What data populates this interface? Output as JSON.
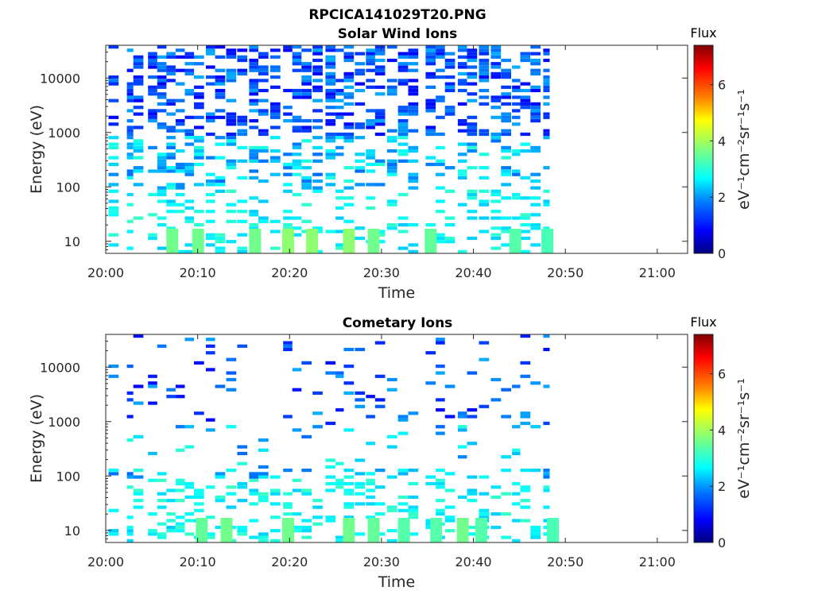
{
  "figure": {
    "filename": "RPCICA141029T20.PNG"
  },
  "colors": {
    "background": "#ffffff",
    "axis": "#262626",
    "colormap": [
      "#00007f",
      "#0000ff",
      "#007fff",
      "#00ffff",
      "#7fff7f",
      "#ffff00",
      "#ff7f00",
      "#ff0000",
      "#7f0000"
    ]
  },
  "chart_data": [
    {
      "type": "heatmap",
      "title": "Solar Wind Ions",
      "xlabel": "Time",
      "ylabel": "Energy (eV)",
      "xticks": [
        "20:00",
        "20:10",
        "20:20",
        "20:30",
        "20:40",
        "20:50",
        "21:00"
      ],
      "xlim_minutes": [
        0,
        63.3
      ],
      "yscale": "log",
      "yticks": [
        "10",
        "100",
        "1000",
        "10000"
      ],
      "ylim": [
        6,
        40000
      ],
      "colorbar": {
        "label": "eV⁻¹cm⁻²sr⁻¹s⁻¹",
        "title": "Flux",
        "ticks": [
          "0",
          "2",
          "4",
          "6"
        ],
        "range": [
          0,
          7.4
        ]
      },
      "data_end_minute": 48.3,
      "columns_minutes": [
        0.3,
        2.3,
        3.0,
        4.6,
        5.6,
        6.6,
        7.6,
        8.6,
        9.6,
        10.9,
        11.9,
        13.1,
        14.3,
        15.6,
        16.6,
        17.9,
        19.3,
        20.3,
        21.3,
        22.5,
        23.9,
        25.0,
        25.9,
        27.1,
        28.3,
        29.3,
        30.6,
        31.8,
        32.9,
        34.8,
        35.9,
        36.9,
        38.3,
        39.3,
        40.6,
        41.9,
        43.0,
        44.2,
        45.1,
        46.2,
        47.6
      ],
      "high_flux_cells": [
        {
          "minute": 6.6,
          "energy_eV": 10,
          "value": 3.6
        },
        {
          "minute": 9.4,
          "energy_eV": 10,
          "value": 3.6
        },
        {
          "minute": 15.6,
          "energy_eV": 10,
          "value": 3.6
        },
        {
          "minute": 19.2,
          "energy_eV": 10,
          "value": 3.8
        },
        {
          "minute": 21.8,
          "energy_eV": 10,
          "value": 3.8
        },
        {
          "minute": 25.8,
          "energy_eV": 10,
          "value": 3.8
        },
        {
          "minute": 28.5,
          "energy_eV": 10,
          "value": 3.6
        },
        {
          "minute": 34.7,
          "energy_eV": 10,
          "value": 3.5
        },
        {
          "minute": 43.9,
          "energy_eV": 10,
          "value": 3.4
        },
        {
          "minute": 47.4,
          "energy_eV": 10,
          "value": 3.3
        }
      ]
    },
    {
      "type": "heatmap",
      "title": "Cometary Ions",
      "xlabel": "Time",
      "ylabel": "Energy (eV)",
      "xticks": [
        "20:00",
        "20:10",
        "20:20",
        "20:30",
        "20:40",
        "20:50",
        "21:00"
      ],
      "xlim_minutes": [
        0,
        63.3
      ],
      "yscale": "log",
      "yticks": [
        "10",
        "100",
        "1000",
        "10000"
      ],
      "ylim": [
        6,
        40000
      ],
      "colorbar": {
        "label": "eV⁻¹cm⁻²sr⁻¹s⁻¹",
        "title": "Flux",
        "ticks": [
          "0",
          "2",
          "4",
          "6"
        ],
        "range": [
          0,
          7.4
        ]
      },
      "data_end_minute": 48.3,
      "columns_minutes": [
        0.3,
        2.3,
        3.0,
        4.6,
        5.6,
        6.6,
        7.6,
        8.6,
        9.6,
        10.9,
        11.9,
        13.1,
        14.3,
        15.6,
        16.6,
        17.9,
        19.3,
        20.3,
        21.3,
        22.5,
        23.9,
        25.0,
        25.9,
        27.1,
        28.3,
        29.3,
        30.6,
        31.8,
        32.9,
        34.8,
        35.9,
        36.9,
        38.3,
        39.3,
        40.6,
        41.9,
        43.0,
        44.2,
        45.1,
        46.2,
        47.6
      ],
      "high_flux_cells": [
        {
          "minute": 9.8,
          "energy_eV": 10,
          "value": 3.5
        },
        {
          "minute": 12.5,
          "energy_eV": 10,
          "value": 3.6
        },
        {
          "minute": 19.2,
          "energy_eV": 10,
          "value": 3.6
        },
        {
          "minute": 25.8,
          "energy_eV": 10,
          "value": 3.6
        },
        {
          "minute": 28.5,
          "energy_eV": 10,
          "value": 3.5
        },
        {
          "minute": 31.8,
          "energy_eV": 10,
          "value": 3.4
        },
        {
          "minute": 35.3,
          "energy_eV": 10,
          "value": 3.4
        },
        {
          "minute": 38.2,
          "energy_eV": 10,
          "value": 3.6
        },
        {
          "minute": 40.2,
          "energy_eV": 10,
          "value": 3.4
        },
        {
          "minute": 48.0,
          "energy_eV": 10,
          "value": 3.3
        }
      ]
    }
  ]
}
